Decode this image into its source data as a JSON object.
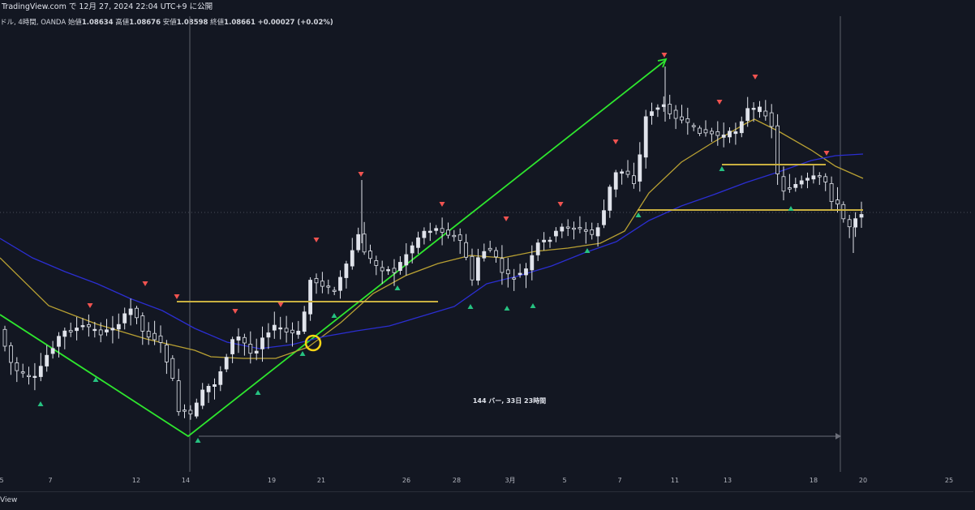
{
  "header": {
    "publish_text": "TradingView.com で 12月 27, 2024 22:04 UTC+9 に公開"
  },
  "ohlc": {
    "symbol_text": "ドル, 4時間, OANDA",
    "open_label": "始値",
    "open": "1.08634",
    "high_label": "高値",
    "high": "1.08676",
    "low_label": "安値",
    "low": "1.08598",
    "close_label": "終値",
    "close": "1.08661",
    "change": "+0.00027 (+0.02%)"
  },
  "footer": {
    "brand_text": "View"
  },
  "colors": {
    "background": "#131722",
    "candle": "#e0e3eb",
    "trendline": "#2ee62e",
    "ma_gold": "#b8a033",
    "ma_blue": "#2b2ed1",
    "marker_up": "#26c281",
    "marker_down": "#f05350",
    "support_line": "#c9b040",
    "highlight_circle": "#f5d415"
  },
  "chart_data": {
    "type": "candlestick",
    "x_ticks": [
      "5",
      "7",
      "12",
      "14",
      "19",
      "21",
      "26",
      "28",
      "3月",
      "5",
      "7",
      "11",
      "13",
      "18",
      "20",
      "25"
    ],
    "measure_label": "144 バー, 33日 23時間",
    "candles_count": 144,
    "grid": false
  }
}
